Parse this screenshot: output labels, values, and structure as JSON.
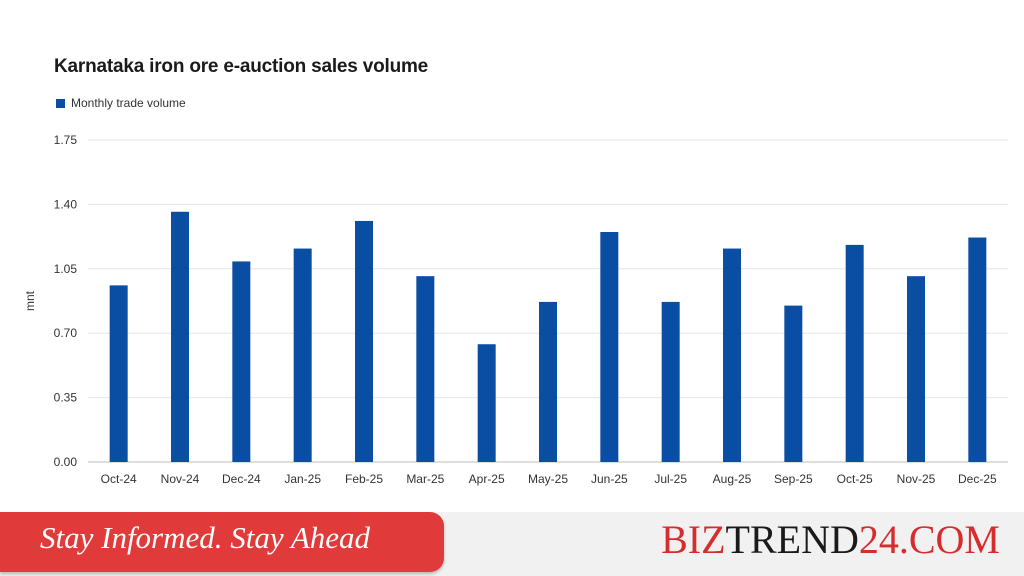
{
  "chart_data": {
    "type": "bar",
    "title": "Karnataka iron ore e-auction sales volume",
    "ylabel": "mnt",
    "xlabel": "",
    "ylim": [
      0,
      1.75
    ],
    "yticks": [
      "0.00",
      "0.35",
      "0.70",
      "1.05",
      "1.40",
      "1.75"
    ],
    "grid": true,
    "legend_position": "top-left",
    "categories": [
      "Oct-24",
      "Nov-24",
      "Dec-24",
      "Jan-25",
      "Feb-25",
      "Mar-25",
      "Apr-25",
      "May-25",
      "Jun-25",
      "Jul-25",
      "Aug-25",
      "Sep-25",
      "Oct-25",
      "Nov-25",
      "Dec-25"
    ],
    "series": [
      {
        "name": "Monthly trade volume",
        "color": "#0a4ea3",
        "values": [
          0.96,
          1.36,
          1.09,
          1.16,
          1.31,
          1.01,
          0.64,
          0.87,
          1.25,
          0.87,
          1.16,
          0.85,
          1.18,
          1.01,
          1.22
        ]
      }
    ]
  },
  "footer": {
    "tagline": "Stay Informed. Stay Ahead",
    "brand_part1": "BIZ",
    "brand_part2": "TREND",
    "brand_part3": "24.COM",
    "brand_red": "#d62c2c",
    "banner_color": "#e03a3a"
  }
}
